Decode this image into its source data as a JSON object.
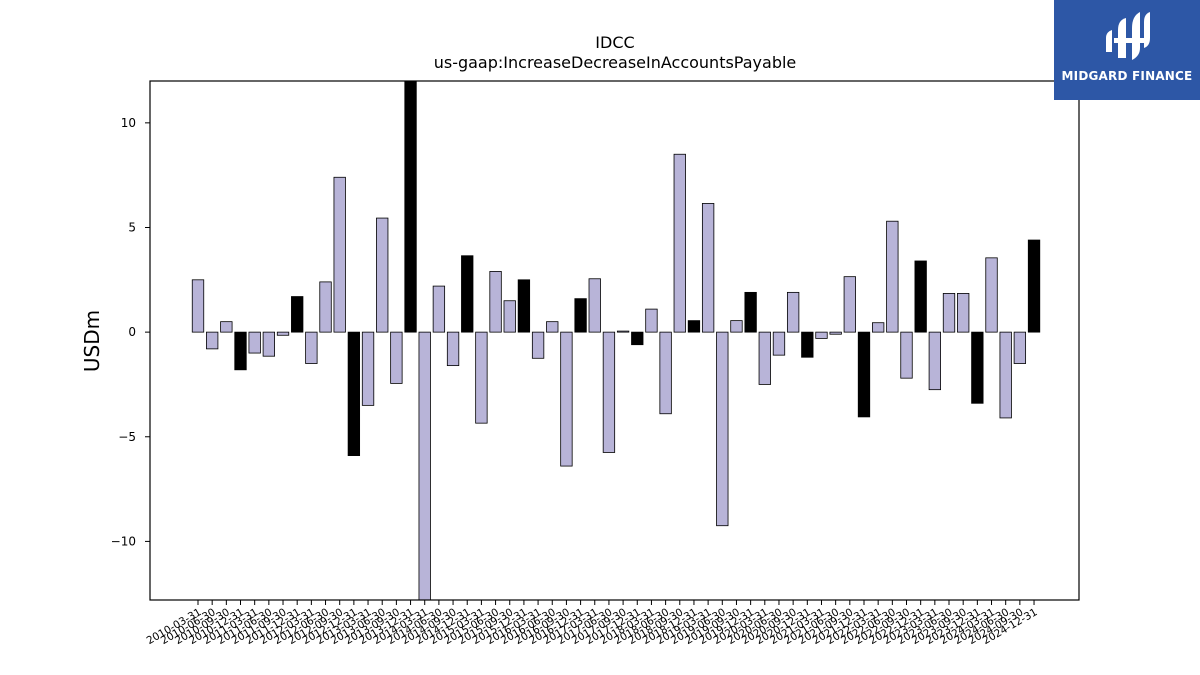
{
  "chart_data": {
    "type": "bar",
    "title": "IDCC",
    "subtitle": "us-gaap:IncreaseDecreaseInAccountsPayable",
    "xlabel": "",
    "ylabel": "USDm",
    "ylim": [
      -12.8,
      12.0
    ],
    "yticks": [
      -10,
      -5,
      0,
      5,
      10
    ],
    "grid": false,
    "legend": "none",
    "colors": {
      "q1_q3": "#b8b4d8",
      "q4": "#000000",
      "edge": "#000000"
    },
    "categories": [
      "2010-03-31",
      "2010-06-30",
      "2010-09-30",
      "2010-12-31",
      "2011-03-31",
      "2011-06-30",
      "2011-09-30",
      "2011-12-31",
      "2012-03-31",
      "2012-06-30",
      "2012-09-30",
      "2012-12-31",
      "2013-03-31",
      "2013-06-30",
      "2013-09-30",
      "2013-12-31",
      "2014-03-31",
      "2014-06-30",
      "2014-09-30",
      "2014-12-31",
      "2015-03-31",
      "2015-06-30",
      "2015-09-30",
      "2015-12-31",
      "2016-03-31",
      "2016-06-30",
      "2016-09-30",
      "2016-12-31",
      "2017-03-31",
      "2017-06-30",
      "2017-09-30",
      "2017-12-31",
      "2018-03-31",
      "2018-06-30",
      "2018-09-30",
      "2018-12-31",
      "2019-03-31",
      "2019-06-30",
      "2019-09-30",
      "2019-12-31",
      "2020-03-31",
      "2020-06-30",
      "2020-09-30",
      "2020-12-31",
      "2021-03-31",
      "2021-06-30",
      "2021-09-30",
      "2021-12-31",
      "2022-03-31",
      "2022-06-30",
      "2022-09-30",
      "2022-12-31",
      "2023-03-31",
      "2023-06-30",
      "2023-09-30",
      "2023-12-31",
      "2024-03-31",
      "2024-06-30",
      "2024-09-30",
      "2024-12-31"
    ],
    "values": [
      2.5,
      -0.8,
      0.5,
      -1.8,
      -1.0,
      -1.15,
      -0.15,
      1.7,
      -1.5,
      2.4,
      7.4,
      -5.9,
      -3.5,
      5.45,
      -2.45,
      12.0,
      -12.8,
      2.2,
      -1.6,
      3.65,
      -4.35,
      2.9,
      1.5,
      2.5,
      -1.25,
      0.5,
      -6.4,
      1.6,
      2.55,
      -5.75,
      0.05,
      -0.6,
      1.1,
      -3.9,
      8.5,
      0.55,
      6.15,
      -9.25,
      0.55,
      1.9,
      -2.5,
      -1.1,
      1.9,
      -1.2,
      -0.3,
      -0.1,
      2.65,
      -4.05,
      0.45,
      5.3,
      -2.2,
      3.4,
      -2.75,
      1.85,
      1.85,
      -3.4,
      3.55,
      -4.1,
      -1.5,
      4.4
    ]
  }
}
